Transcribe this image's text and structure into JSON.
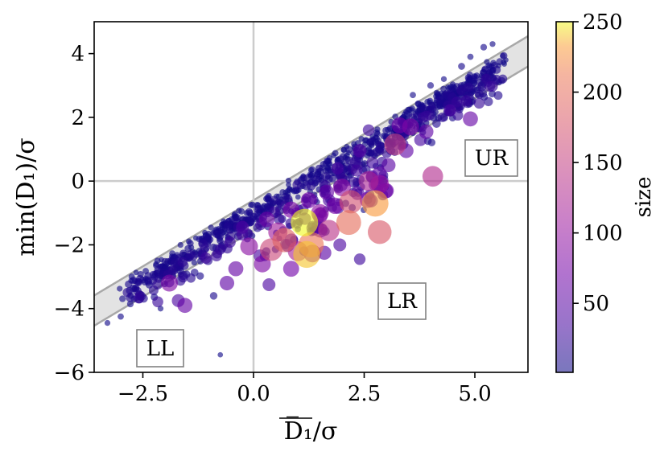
{
  "chart_data": {
    "type": "scatter",
    "xlabel": "D̅₁/σ",
    "ylabel": "min(D₁)/σ",
    "xlim": [
      -3.6,
      6.2
    ],
    "ylim": [
      -6.0,
      5.0
    ],
    "xticks": [
      -2.5,
      0.0,
      2.5,
      5.0
    ],
    "xtick_labels": [
      "−2.5",
      "0.0",
      "2.5",
      "5.0"
    ],
    "yticks": [
      4,
      2,
      0,
      -2,
      -4,
      -6
    ],
    "ytick_labels": [
      "4",
      "2",
      "0",
      "−2",
      "−4",
      "−6"
    ],
    "grid": false,
    "reference_lines": {
      "x": 0,
      "y": 0
    },
    "band": {
      "description": "shaded band between lines y = 0.83x - 1.55 and y = 0.83x - 0.6"
    },
    "band_lower": {
      "slope": 0.83,
      "intercept": -1.55
    },
    "band_upper": {
      "slope": 0.83,
      "intercept": -0.6
    },
    "region_labels": [
      "UR",
      "LR",
      "LL"
    ],
    "colorbar": {
      "label": "size",
      "colormap": "plasma",
      "range": [
        1,
        250
      ],
      "ticks": [
        50,
        100,
        150,
        200,
        250
      ],
      "tick_labels": [
        "50",
        "100",
        "150",
        "200",
        "250"
      ]
    },
    "points": [
      {
        "x": 4.9,
        "y": 1.95,
        "size": 60
      },
      {
        "x": 4.05,
        "y": 0.15,
        "size": 130
      },
      {
        "x": 3.9,
        "y": 1.55,
        "size": 55
      },
      {
        "x": 3.3,
        "y": 1.75,
        "size": 70
      },
      {
        "x": 3.55,
        "y": 1.7,
        "size": 80
      },
      {
        "x": 3.2,
        "y": 1.15,
        "size": 150
      },
      {
        "x": 3.45,
        "y": 0.95,
        "size": 55
      },
      {
        "x": 3.05,
        "y": 0.5,
        "size": 50
      },
      {
        "x": 2.85,
        "y": -1.6,
        "size": 180
      },
      {
        "x": 2.75,
        "y": -0.7,
        "size": 230
      },
      {
        "x": 2.6,
        "y": 0.0,
        "size": 120
      },
      {
        "x": 2.85,
        "y": -0.1,
        "size": 100
      },
      {
        "x": 3.0,
        "y": -0.3,
        "size": 60
      },
      {
        "x": 2.2,
        "y": -0.65,
        "size": 170
      },
      {
        "x": 2.15,
        "y": -1.3,
        "size": 200
      },
      {
        "x": 2.0,
        "y": -0.2,
        "size": 90
      },
      {
        "x": 1.7,
        "y": -1.55,
        "size": 140
      },
      {
        "x": 1.15,
        "y": -1.3,
        "size": 250
      },
      {
        "x": 1.2,
        "y": -2.3,
        "size": 240
      },
      {
        "x": 1.3,
        "y": -2.0,
        "size": 210
      },
      {
        "x": 0.7,
        "y": -1.85,
        "size": 190
      },
      {
        "x": 1.0,
        "y": -2.2,
        "size": 120
      },
      {
        "x": 0.4,
        "y": -2.15,
        "size": 160
      },
      {
        "x": 0.55,
        "y": -1.6,
        "size": 110
      },
      {
        "x": 1.5,
        "y": -1.0,
        "size": 90
      },
      {
        "x": 0.85,
        "y": -0.9,
        "size": 75
      },
      {
        "x": 1.25,
        "y": -0.6,
        "size": 70
      },
      {
        "x": 1.65,
        "y": -0.35,
        "size": 60
      },
      {
        "x": 0.3,
        "y": -1.2,
        "size": 65
      },
      {
        "x": -0.1,
        "y": -2.05,
        "size": 90
      },
      {
        "x": -0.4,
        "y": -2.75,
        "size": 60
      },
      {
        "x": -0.6,
        "y": -3.2,
        "size": 55
      },
      {
        "x": 0.2,
        "y": -2.6,
        "size": 80
      },
      {
        "x": 0.85,
        "y": -2.75,
        "size": 70
      },
      {
        "x": 0.35,
        "y": -3.25,
        "size": 40
      },
      {
        "x": -1.9,
        "y": -3.2,
        "size": 80
      },
      {
        "x": -1.55,
        "y": -3.9,
        "size": 60
      },
      {
        "x": -1.7,
        "y": -3.75,
        "size": 40
      },
      {
        "x": -0.25,
        "y": -1.45,
        "size": 40
      },
      {
        "x": 1.6,
        "y": -2.25,
        "size": 50
      },
      {
        "x": 2.4,
        "y": -2.45,
        "size": 30
      },
      {
        "x": 1.95,
        "y": -2.0,
        "size": 40
      },
      {
        "x": 2.4,
        "y": 0.95,
        "size": 45
      },
      {
        "x": 1.9,
        "y": 0.4,
        "size": 35
      },
      {
        "x": 2.6,
        "y": 1.6,
        "size": 30
      },
      {
        "x": 5.7,
        "y": 3.8,
        "size": 2
      },
      {
        "x": 5.4,
        "y": 4.3,
        "size": 3
      },
      {
        "x": 5.2,
        "y": 4.2,
        "size": 5
      },
      {
        "x": 4.9,
        "y": 3.9,
        "size": 4
      },
      {
        "x": 4.7,
        "y": 3.6,
        "size": 6
      },
      {
        "x": 4.3,
        "y": 3.2,
        "size": 3
      },
      {
        "x": 4.0,
        "y": 3.0,
        "size": 5
      },
      {
        "x": 3.6,
        "y": 2.7,
        "size": 4
      },
      {
        "x": -0.75,
        "y": -5.45,
        "size": 2
      },
      {
        "x": -3.3,
        "y": -4.45,
        "size": 3
      },
      {
        "x": -3.0,
        "y": -4.25,
        "size": 4
      },
      {
        "x": -2.7,
        "y": -3.7,
        "size": 5
      },
      {
        "x": -2.2,
        "y": -2.65,
        "size": 4
      },
      {
        "x": -2.5,
        "y": -3.1,
        "size": 6
      },
      {
        "x": -2.1,
        "y": -4.0,
        "size": 3
      },
      {
        "x": -1.3,
        "y": -2.3,
        "size": 6
      },
      {
        "x": -0.9,
        "y": -3.6,
        "size": 8
      },
      {
        "x": -1.1,
        "y": -1.9,
        "size": 5
      }
    ]
  }
}
